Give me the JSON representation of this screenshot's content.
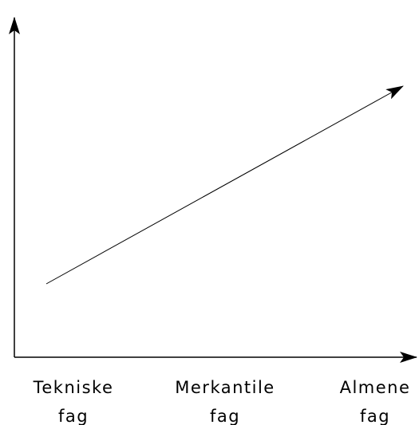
{
  "labels": [
    {
      "lines": [
        "Tekniske",
        "fag"
      ]
    },
    {
      "lines": [
        "Merkantile",
        "fag"
      ]
    },
    {
      "lines": [
        "Almene",
        "fag"
      ]
    }
  ]
}
